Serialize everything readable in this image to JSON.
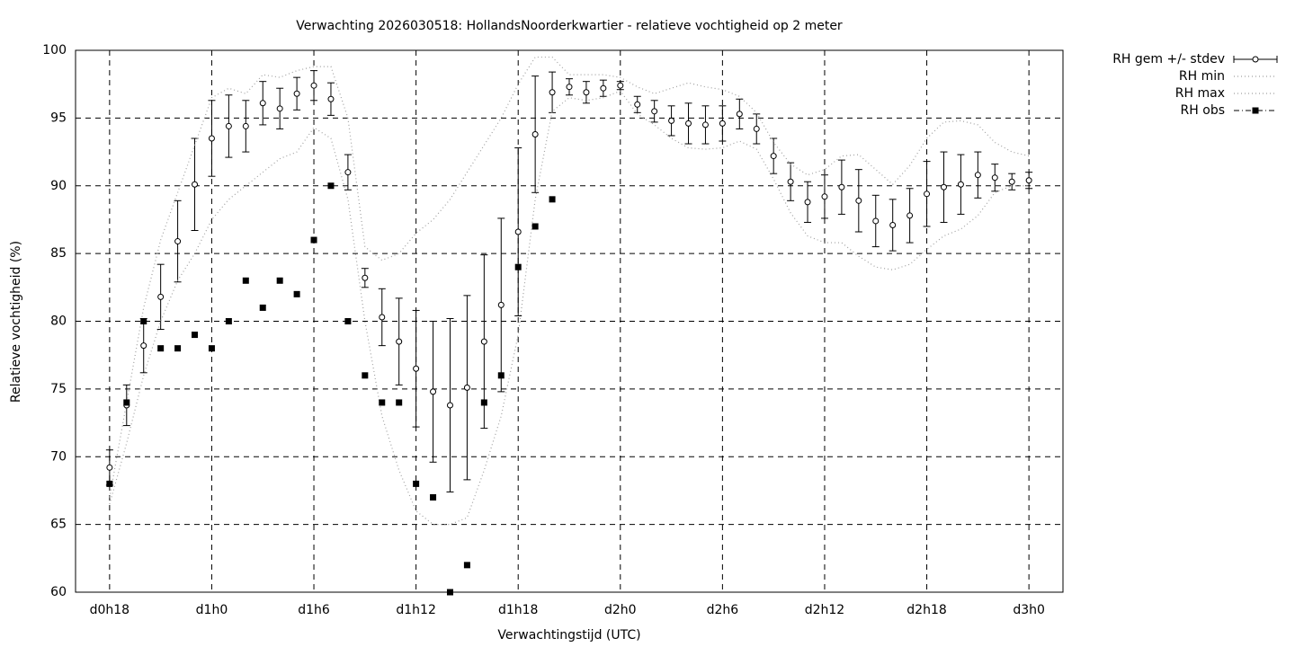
{
  "chart_data": {
    "type": "errorline",
    "title": "Verwachting 2026030518: HollandsNoorderkwartier - relatieve vochtigheid op 2 meter",
    "xlabel": "Verwachtingstijd (UTC)",
    "ylabel": "Relatieve vochtigheid (%)",
    "xlim": [
      16,
      74
    ],
    "ylim": [
      60,
      100
    ],
    "xticks": [
      {
        "value": 18,
        "label": "d0h18"
      },
      {
        "value": 24,
        "label": "d1h0"
      },
      {
        "value": 30,
        "label": "d1h6"
      },
      {
        "value": 36,
        "label": "d1h12"
      },
      {
        "value": 42,
        "label": "d1h18"
      },
      {
        "value": 48,
        "label": "d2h0"
      },
      {
        "value": 54,
        "label": "d2h6"
      },
      {
        "value": 60,
        "label": "d2h12"
      },
      {
        "value": 66,
        "label": "d2h18"
      },
      {
        "value": 72,
        "label": "d3h0"
      }
    ],
    "yticks": [
      60,
      65,
      70,
      75,
      80,
      85,
      90,
      95,
      100
    ],
    "grid": true,
    "legend": "outside-top-right",
    "x": [
      18,
      19,
      20,
      21,
      22,
      23,
      24,
      25,
      26,
      27,
      28,
      29,
      30,
      31,
      32,
      33,
      34,
      35,
      36,
      37,
      38,
      39,
      40,
      41,
      42,
      43,
      44,
      45,
      46,
      47,
      48,
      49,
      50,
      51,
      52,
      53,
      54,
      55,
      56,
      57,
      58,
      59,
      60,
      61,
      62,
      63,
      64,
      65,
      66,
      67,
      68,
      69,
      70,
      71,
      72
    ],
    "series": [
      {
        "name": "RH gem +/- stdev",
        "color": "#000000",
        "style": "errorbars",
        "values": [
          69.2,
          73.8,
          78.2,
          81.8,
          85.9,
          90.1,
          93.5,
          94.4,
          94.4,
          96.1,
          95.7,
          96.8,
          97.4,
          96.4,
          91.0,
          83.2,
          80.3,
          78.5,
          76.5,
          74.8,
          73.8,
          75.1,
          78.5,
          81.2,
          86.6,
          93.8,
          96.9,
          97.3,
          96.9,
          97.2,
          97.4,
          96.0,
          95.5,
          94.8,
          94.6,
          94.5,
          94.6,
          95.3,
          94.2,
          92.2,
          90.3,
          88.8,
          89.2,
          89.9,
          88.9,
          87.4,
          87.1,
          87.8,
          89.4,
          89.9,
          90.1,
          90.8,
          90.6,
          90.3,
          90.4
        ],
        "errors": [
          1.3,
          1.5,
          2.0,
          2.4,
          3.0,
          3.4,
          2.8,
          2.3,
          1.9,
          1.6,
          1.5,
          1.2,
          1.1,
          1.2,
          1.3,
          0.7,
          2.1,
          3.2,
          4.3,
          5.2,
          6.4,
          6.8,
          6.4,
          6.4,
          6.2,
          4.3,
          1.5,
          0.6,
          0.8,
          0.6,
          0.3,
          0.6,
          0.8,
          1.1,
          1.5,
          1.4,
          1.3,
          1.1,
          1.1,
          1.3,
          1.4,
          1.5,
          1.6,
          2.0,
          2.3,
          1.9,
          1.9,
          2.0,
          2.4,
          2.6,
          2.2,
          1.7,
          1.0,
          0.6,
          0.6
        ]
      },
      {
        "name": "RH min",
        "color": "#a0a0a0",
        "style": "dotted",
        "values": [
          66.5,
          71,
          76,
          80,
          83,
          85,
          87.5,
          89,
          90,
          91,
          92,
          92.5,
          94.3,
          93.5,
          89,
          80,
          73,
          69,
          66,
          65,
          65,
          65.5,
          69,
          73,
          79,
          89,
          95.5,
          96.5,
          96.3,
          96.5,
          97,
          95.3,
          94.5,
          93.5,
          92.8,
          92.7,
          92.8,
          93.3,
          92.7,
          90.5,
          88,
          86.3,
          85.8,
          85.8,
          84.8,
          84,
          83.8,
          84.2,
          85.3,
          86.3,
          86.8,
          87.8,
          89.5,
          90,
          90
        ]
      },
      {
        "name": "RH max",
        "color": "#a0a0a0",
        "style": "dotted",
        "values": [
          67,
          74,
          81,
          86,
          89.5,
          93,
          96.5,
          97.2,
          96.8,
          98.2,
          98,
          98.5,
          98.8,
          98.8,
          95,
          85.5,
          84.5,
          85,
          86.5,
          87.5,
          89,
          91,
          93,
          95,
          97.5,
          99.5,
          99.5,
          98.2,
          98.2,
          98.2,
          98,
          97.3,
          96.8,
          97.2,
          97.6,
          97.3,
          97.1,
          96.6,
          95.4,
          93.2,
          91.6,
          90.8,
          91.2,
          92.2,
          92.3,
          91.2,
          90.1,
          91.5,
          93.5,
          94.7,
          94.8,
          94.5,
          93.2,
          92.5,
          92.2
        ]
      },
      {
        "name": "RH obs",
        "color": "#000000",
        "style": "points",
        "values": [
          68,
          74,
          80,
          78,
          78,
          79,
          78,
          80,
          83,
          81,
          83,
          82,
          86,
          90,
          80,
          76,
          74,
          74,
          68,
          67,
          60,
          62,
          74,
          76,
          84,
          87,
          89,
          null,
          null,
          null,
          null,
          null,
          null,
          null,
          null,
          null,
          null,
          null,
          null,
          null,
          null,
          null,
          null,
          null,
          null,
          null,
          null,
          null,
          null,
          null,
          null,
          null,
          null,
          null,
          null
        ]
      }
    ]
  }
}
